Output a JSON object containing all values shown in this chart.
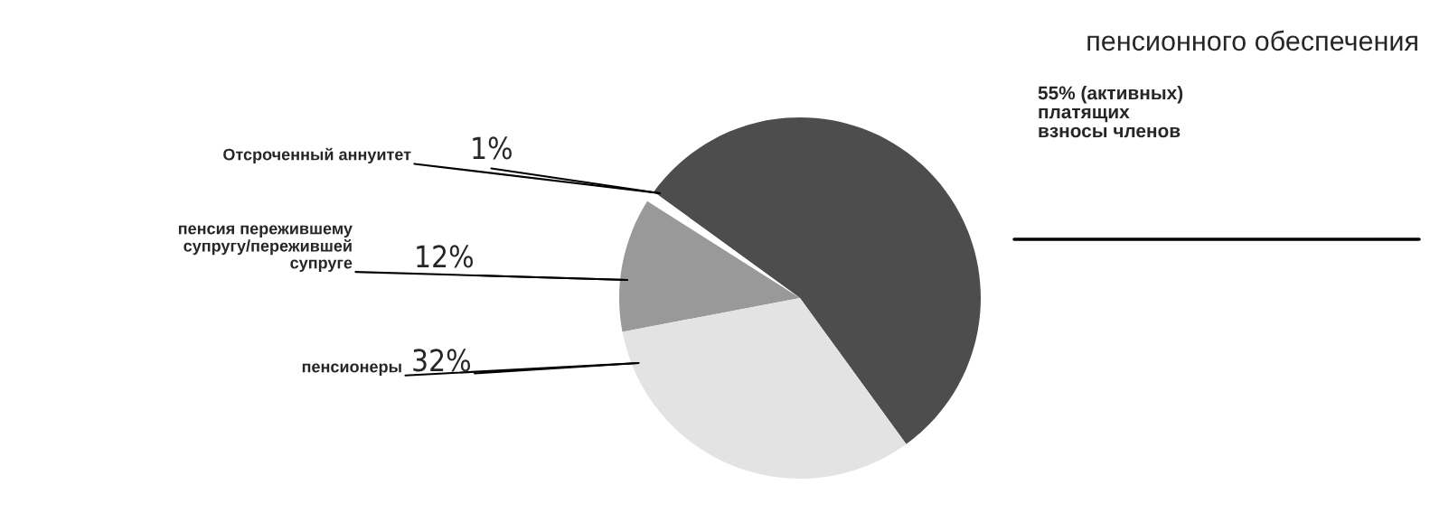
{
  "chart_data": {
    "type": "pie",
    "title": "пенсионного обеспечения",
    "categories": [
      "(активных)\nплатящих\nвзносы членов",
      "Отсроченный аннуитет",
      "пенсия пережившему\n      супругу/пережившей\n      супруге",
      "пенсионеры"
    ],
    "values": [
      55,
      1,
      12,
      32
    ],
    "value_labels": [
      "55%",
      "1%",
      "12%",
      "32%"
    ],
    "colors": [
      "#4d4d4d",
      "#ffffff",
      "#999999",
      "#e3e3e3"
    ],
    "legend": false
  }
}
